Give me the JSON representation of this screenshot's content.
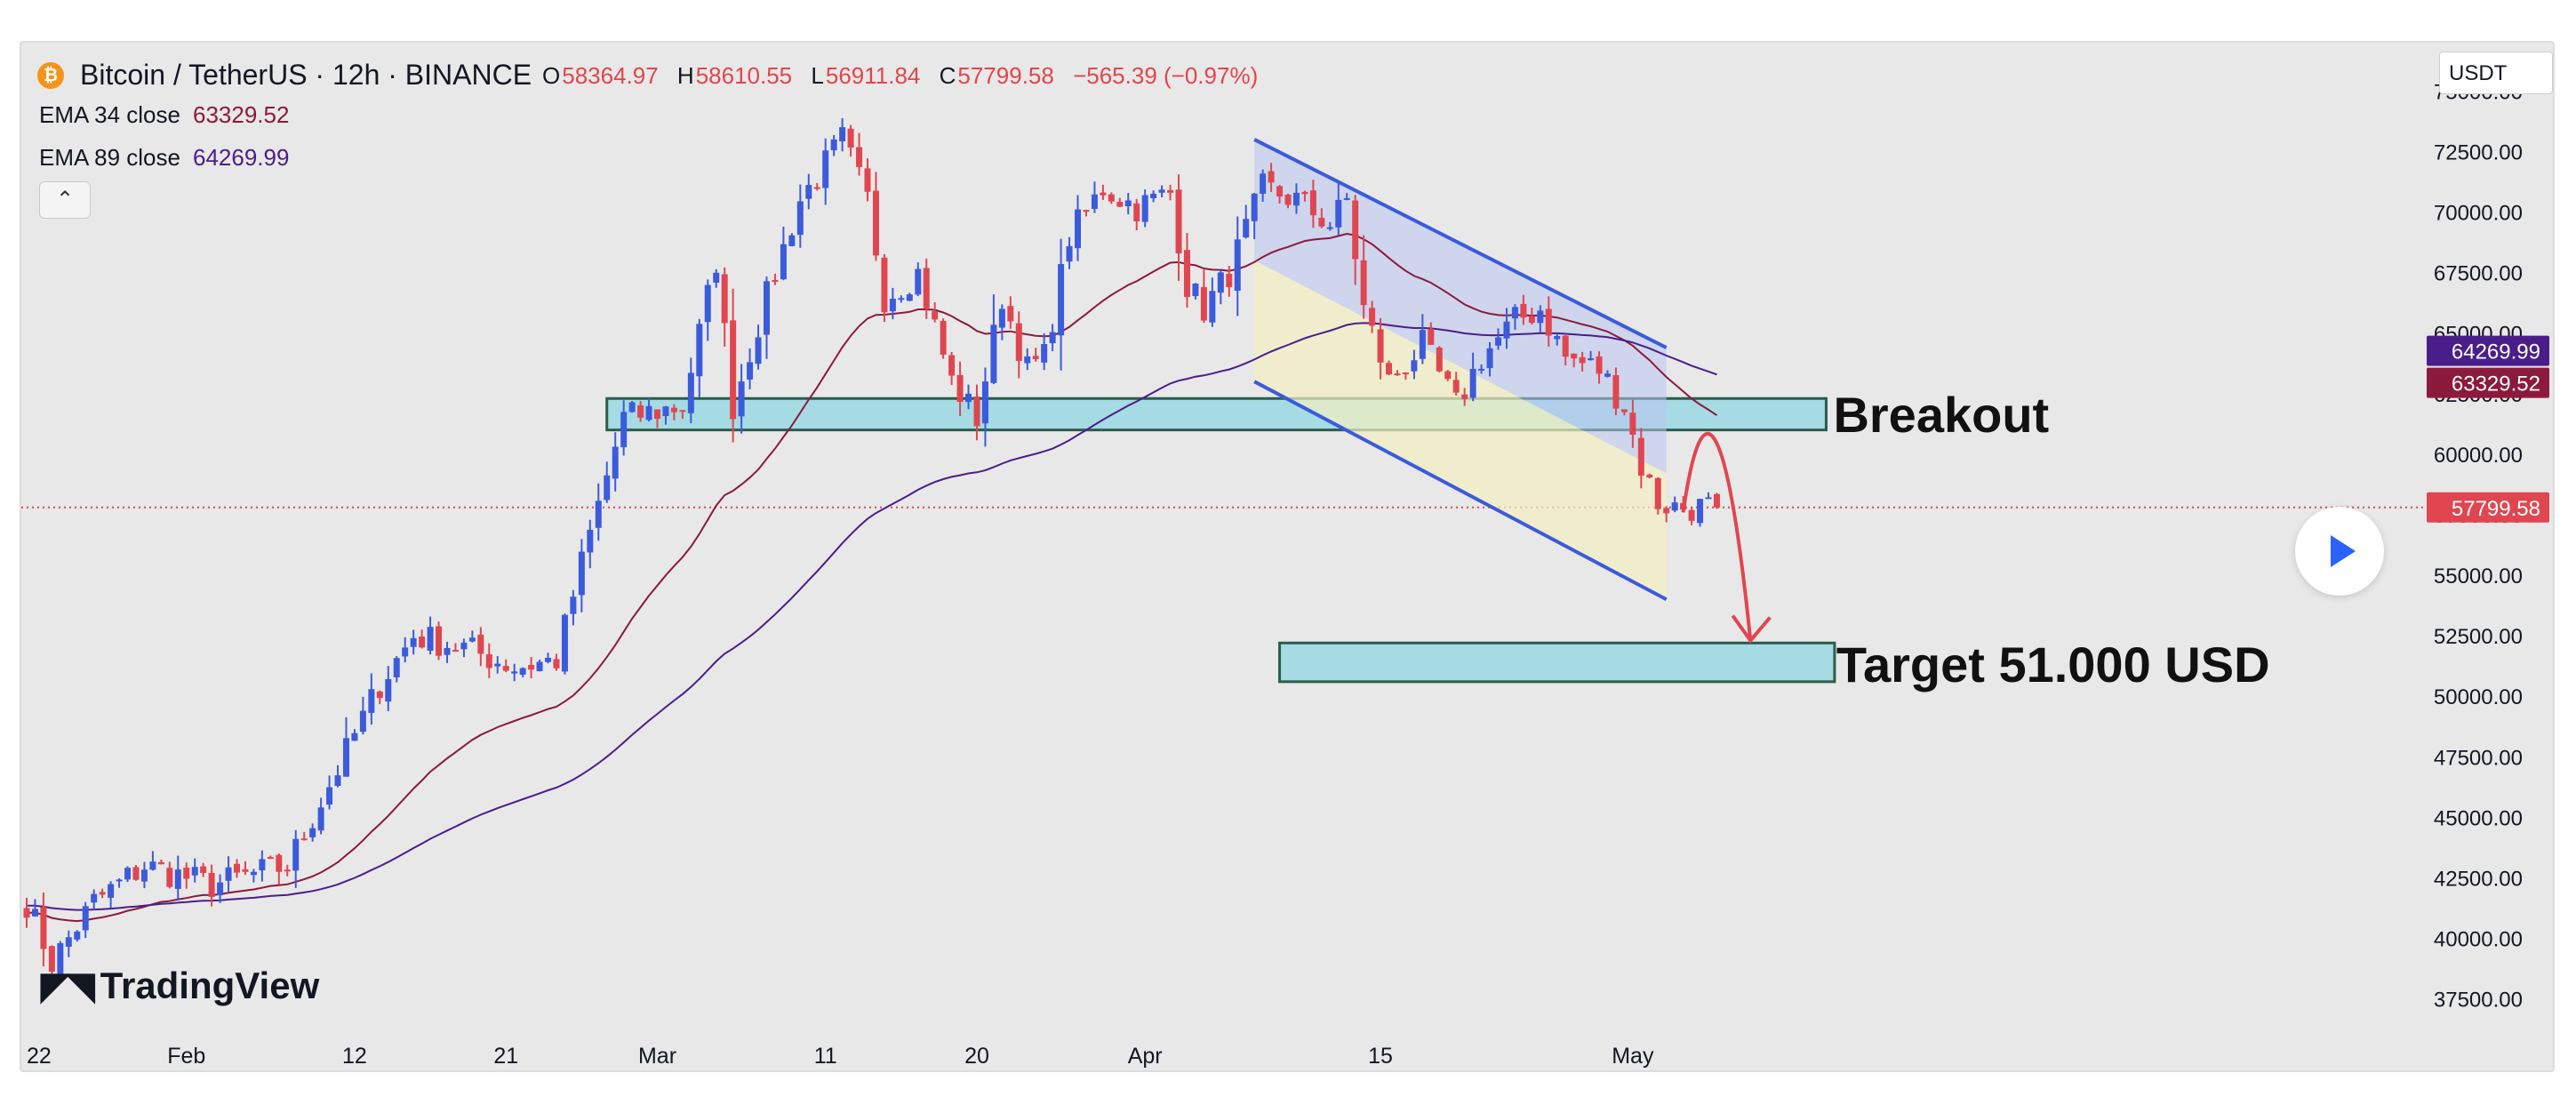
{
  "header": {
    "symbol": "Bitcoin / TetherUS · 12h · BINANCE",
    "coin_glyph": "₿",
    "o_key": "O",
    "o_val": "58364.97",
    "h_key": "H",
    "h_val": "58610.55",
    "l_key": "L",
    "l_val": "56911.84",
    "c_key": "C",
    "c_val": "57799.58",
    "change": "−565.39 (−0.97%)",
    "ema1_label": "EMA 34 close",
    "ema1_value": "63329.52",
    "ema2_label": "EMA 89 close",
    "ema2_value": "64269.99",
    "collapse_glyph": "⌃",
    "unit": "USDT"
  },
  "logo": {
    "mark": "◤◥",
    "text": "TradingView"
  },
  "colors": {
    "bull": "#3b5bdb",
    "bear": "#e04650",
    "ema34": "#8b1a3c",
    "ema89": "#4a1e8a",
    "zone_fill": "#a6dbe3",
    "zone_stroke": "#2b5c4a",
    "channel": "#3b5bdb",
    "arrow": "#e04650",
    "last_price": "#e04650"
  },
  "chart_data": {
    "type": "candlestick",
    "title": "Bitcoin / TetherUS · 12h · BINANCE",
    "ylim": [
      35500,
      77000
    ],
    "y_ticks": [
      "75000.00",
      "72500.00",
      "70000.00",
      "67500.00",
      "65000.00",
      "62500.00",
      "60000.00",
      "57500.00",
      "55000.00",
      "52500.00",
      "50000.00",
      "47500.00",
      "45000.00",
      "42500.00",
      "40000.00",
      "37500.00"
    ],
    "x_ticks": [
      {
        "label": "22",
        "bar": 0
      },
      {
        "label": "Feb",
        "bar": 19
      },
      {
        "label": "12",
        "bar": 39
      },
      {
        "label": "21",
        "bar": 57
      },
      {
        "label": "Mar",
        "bar": 75
      },
      {
        "label": "11",
        "bar": 95
      },
      {
        "label": "20",
        "bar": 113
      },
      {
        "label": "Apr",
        "bar": 133
      },
      {
        "label": "15",
        "bar": 161
      },
      {
        "label": "May",
        "bar": 191
      }
    ],
    "n_bars": 202,
    "waypoints": [
      [
        0,
        41500
      ],
      [
        3,
        39000
      ],
      [
        8,
        41500
      ],
      [
        14,
        43000
      ],
      [
        22,
        42200
      ],
      [
        31,
        43000
      ],
      [
        37,
        47000
      ],
      [
        42,
        50500
      ],
      [
        46,
        52500
      ],
      [
        52,
        52000
      ],
      [
        58,
        51200
      ],
      [
        63,
        51500
      ],
      [
        66,
        55500
      ],
      [
        71,
        61500
      ],
      [
        78,
        62000
      ],
      [
        82,
        68000
      ],
      [
        84,
        62000
      ],
      [
        88,
        66500
      ],
      [
        92,
        70500
      ],
      [
        97,
        73000
      ],
      [
        100,
        70500
      ],
      [
        102,
        66500
      ],
      [
        106,
        67500
      ],
      [
        110,
        63000
      ],
      [
        113,
        61500
      ],
      [
        116,
        66500
      ],
      [
        119,
        63500
      ],
      [
        121,
        64000
      ],
      [
        124,
        69000
      ],
      [
        128,
        71000
      ],
      [
        132,
        70200
      ],
      [
        136,
        70800
      ],
      [
        138,
        67000
      ],
      [
        140,
        66000
      ],
      [
        143,
        67500
      ],
      [
        147,
        71000
      ],
      [
        151,
        70500
      ],
      [
        155,
        69500
      ],
      [
        157,
        70500
      ],
      [
        159,
        66000
      ],
      [
        162,
        63000
      ],
      [
        166,
        64500
      ],
      [
        170,
        62000
      ],
      [
        173,
        64000
      ],
      [
        177,
        65500
      ],
      [
        180,
        66000
      ],
      [
        183,
        64000
      ],
      [
        187,
        63500
      ],
      [
        190,
        62000
      ],
      [
        192,
        59500
      ],
      [
        194,
        58000
      ],
      [
        196,
        57800
      ]
    ],
    "last_close": 57799.58,
    "ema_series": [
      {
        "name": "EMA 34 close",
        "period": 34,
        "last": 63329.52
      },
      {
        "name": "EMA 89 close",
        "period": 89,
        "last": 64269.99
      }
    ],
    "zones": [
      {
        "name": "Breakout",
        "from": 61000,
        "to": 62300,
        "bar_start": 69,
        "bar_end": 214
      },
      {
        "name": "Target 51.000 USD",
        "from": 50600,
        "to": 52200,
        "bar_start": 149,
        "bar_end": 215
      }
    ],
    "channel": {
      "upper": [
        [
          146,
          73000
        ],
        [
          195,
          64400
        ]
      ],
      "lower": [
        [
          146,
          63000
        ],
        [
          195,
          54000
        ]
      ]
    },
    "annotations": [
      {
        "text": "Breakout"
      },
      {
        "text": "Target 51.000 USD"
      }
    ],
    "price_labels": [
      {
        "value": 64269.99,
        "text": "64269.99",
        "color": "#4a1e8a"
      },
      {
        "value": 63329.52,
        "text": "63329.52",
        "color": "#8b1a3c"
      },
      {
        "value": 57799.58,
        "text": "57799.58",
        "color": "#e04650"
      }
    ]
  }
}
